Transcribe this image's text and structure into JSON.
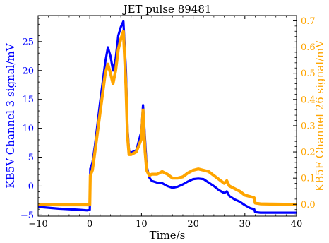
{
  "chart_data": {
    "type": "line",
    "title": "JET pulse 89481",
    "xlabel": "Time/s",
    "xlim": [
      -10,
      40
    ],
    "x_ticks": [
      -10,
      0,
      10,
      20,
      30,
      40
    ],
    "x_tick_labels": [
      "−10",
      "0",
      "10",
      "20",
      "30",
      "40"
    ],
    "left_axis": {
      "label": "KB5V Channel 3 signal/mV",
      "ylim": [
        -5.2,
        29.5
      ],
      "ticks": [
        -5,
        0,
        5,
        10,
        15,
        20,
        25
      ],
      "tick_labels": [
        "−5",
        "0",
        "5",
        "10",
        "15",
        "20",
        "25"
      ],
      "color": "#0000ff"
    },
    "right_axis": {
      "label": "KB5F Channel 26 signal/mV",
      "ylim": [
        -0.045,
        0.72
      ],
      "ticks": [
        0.0,
        0.1,
        0.2,
        0.3,
        0.4,
        0.5,
        0.6,
        0.7
      ],
      "tick_labels": [
        "0.0",
        "0.1",
        "0.2",
        "0.3",
        "0.4",
        "0.5",
        "0.6",
        "0.7"
      ],
      "color": "#ffa500"
    },
    "grid": false,
    "series": [
      {
        "axis": "left",
        "color": "#0000ff",
        "x": [
          -10,
          -6,
          -2,
          -0.5,
          0,
          0.1,
          0.5,
          1,
          2,
          3,
          3.5,
          4,
          4.5,
          5,
          5.5,
          6,
          6.5,
          7,
          7.3,
          7.6,
          8,
          9,
          10,
          10.3,
          10.7,
          11,
          11.5,
          12,
          13,
          14,
          15,
          16,
          17,
          18,
          19,
          20,
          21,
          22,
          23,
          24,
          25,
          26,
          26.5,
          27,
          28,
          29,
          30,
          31,
          31.8,
          32,
          33,
          35,
          40
        ],
        "y": [
          -3.6,
          -3.9,
          -4.1,
          -4.2,
          -4.1,
          3.0,
          4.0,
          7.0,
          14.5,
          21.5,
          24.0,
          22.5,
          20.0,
          22.0,
          26.0,
          27.5,
          28.5,
          20.0,
          10.0,
          6.0,
          5.8,
          6.2,
          9.5,
          14.0,
          8.0,
          3.5,
          1.5,
          0.9,
          0.6,
          0.5,
          0.0,
          -0.3,
          -0.1,
          0.3,
          0.8,
          1.2,
          1.3,
          1.2,
          0.6,
          0.0,
          -0.7,
          -1.2,
          -0.9,
          -1.7,
          -2.3,
          -2.7,
          -3.3,
          -3.8,
          -4.0,
          -4.5,
          -4.6,
          -4.6,
          -4.6
        ]
      },
      {
        "axis": "right",
        "color": "#ffa500",
        "x": [
          -10,
          -6,
          -2,
          -0.5,
          0,
          0.1,
          0.5,
          1,
          2,
          3,
          3.5,
          4,
          4.5,
          5,
          5.5,
          6,
          6.5,
          7,
          7.3,
          7.6,
          8,
          9,
          10,
          10.3,
          10.7,
          11,
          11.5,
          12,
          13,
          14,
          15,
          16,
          17,
          18,
          19,
          20,
          21,
          22,
          23,
          24,
          25,
          26,
          26.5,
          27,
          28,
          29,
          30,
          31,
          31.8,
          32,
          33,
          35,
          40
        ],
        "y": [
          -0.001,
          -0.002,
          -0.002,
          -0.002,
          -0.002,
          0.11,
          0.13,
          0.2,
          0.35,
          0.5,
          0.535,
          0.5,
          0.46,
          0.51,
          0.59,
          0.63,
          0.66,
          0.45,
          0.26,
          0.19,
          0.19,
          0.2,
          0.25,
          0.36,
          0.2,
          0.13,
          0.11,
          0.115,
          0.115,
          0.125,
          0.115,
          0.1,
          0.1,
          0.105,
          0.12,
          0.13,
          0.135,
          0.13,
          0.125,
          0.11,
          0.095,
          0.08,
          0.09,
          0.07,
          0.06,
          0.05,
          0.035,
          0.03,
          0.025,
          0.005,
          0.002,
          0.001,
          0.0
        ]
      }
    ]
  }
}
